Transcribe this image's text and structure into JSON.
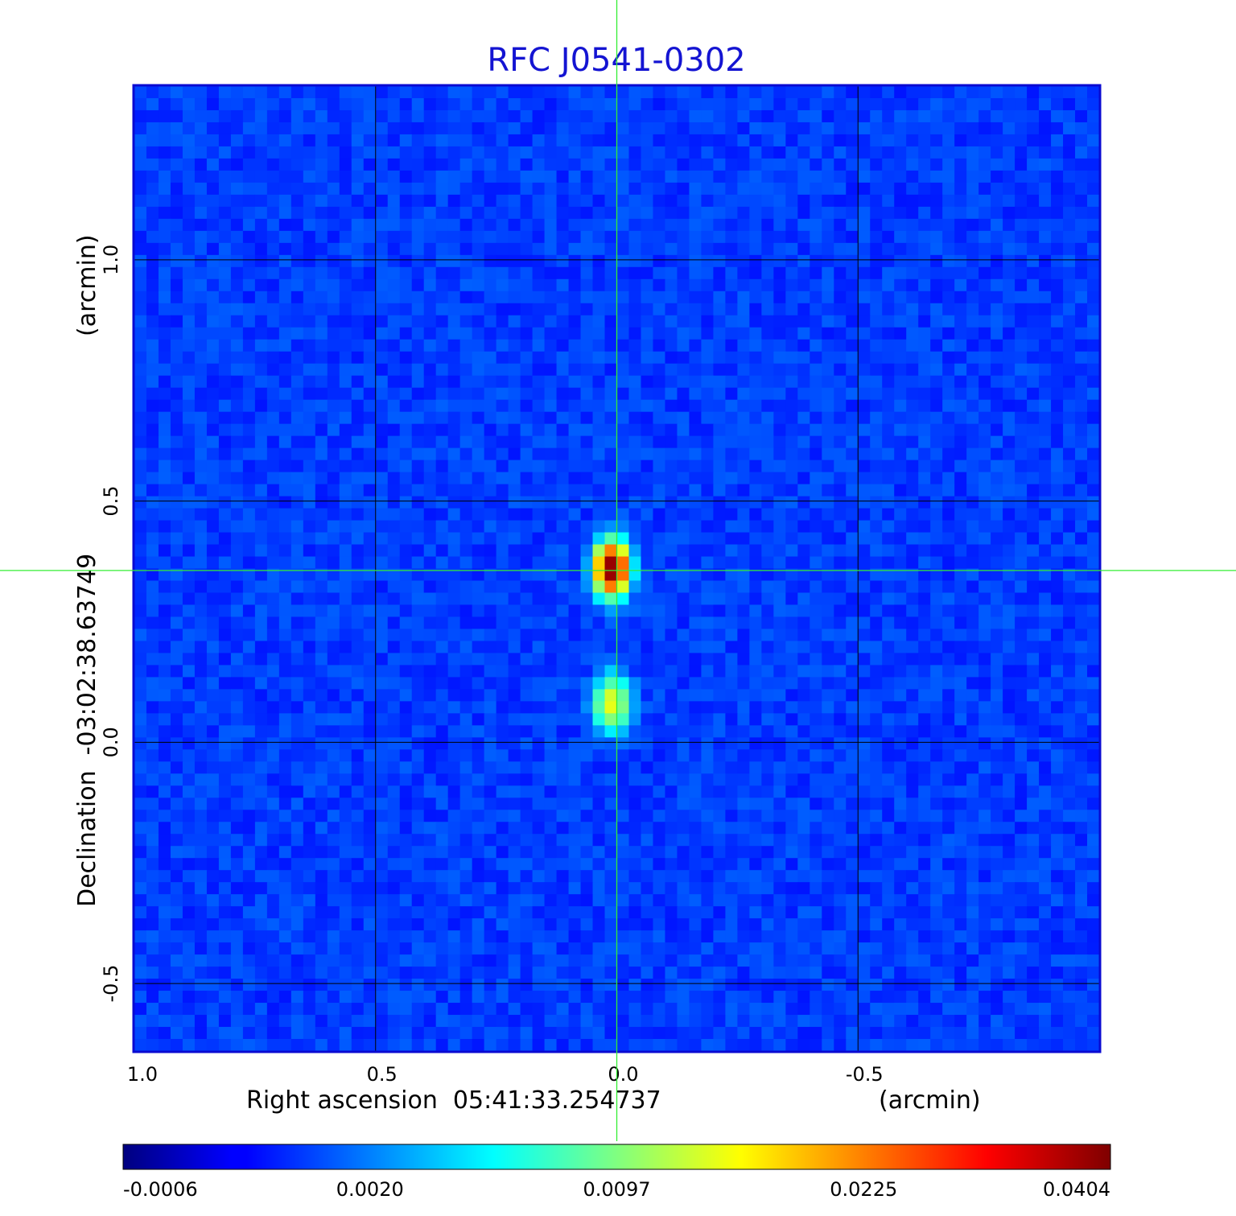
{
  "chart_data": {
    "type": "heatmap",
    "title": "RFC J0541-0302",
    "xlabel": "Right ascension  05:41:33.254737",
    "xunit": "(arcmin)",
    "ylabel": "Declination  -03:02:38.63749",
    "yunit": "(arcmin)",
    "xlim": [
      1.0,
      -1.0
    ],
    "ylim": [
      -0.64,
      1.36
    ],
    "x_ticks": [
      {
        "value": 1.0,
        "label": "1.0"
      },
      {
        "value": 0.5,
        "label": "0.5"
      },
      {
        "value": 0.0,
        "label": "0.0"
      },
      {
        "value": -0.5,
        "label": "-0.5"
      }
    ],
    "y_ticks": [
      {
        "value": 1.0,
        "label": "1.0"
      },
      {
        "value": 0.5,
        "label": "0.5"
      },
      {
        "value": 0.0,
        "label": "0.0"
      },
      {
        "value": -0.5,
        "label": "-0.5"
      }
    ],
    "grid": true,
    "crosshair": {
      "x": 0.0,
      "y": 0.356,
      "color": "#33ee33"
    },
    "colorbar": {
      "orientation": "horizontal",
      "colormap": "jet",
      "ticks": [
        "-0.0006",
        "0.0020",
        "0.0097",
        "0.0225",
        "0.0404"
      ]
    },
    "sources": [
      {
        "x": 0.01,
        "y": 0.36,
        "peak": 0.0404,
        "sx": 0.022,
        "sy": 0.034
      },
      {
        "x": 0.01,
        "y": 0.08,
        "peak": 0.014,
        "sx": 0.024,
        "sy": 0.036
      }
    ],
    "background_level": 0.0008
  }
}
